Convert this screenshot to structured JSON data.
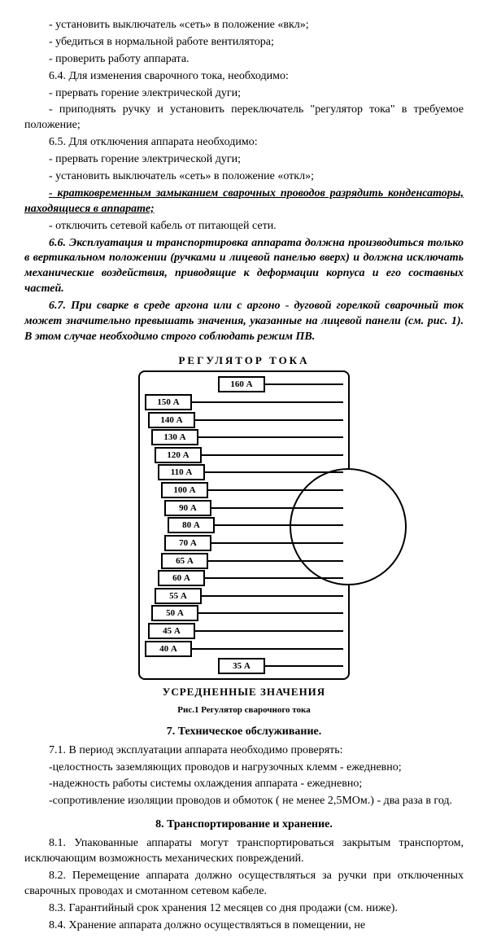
{
  "p1": "- установить выключатель «сеть» в положение «вкл»;",
  "p2": "- убедиться в нормальной работе вентилятора;",
  "p3": "- проверить работу аппарата.",
  "p4": "6.4. Для изменения сварочного тока, необходимо:",
  "p5": "- прервать горение электрической дуги;",
  "p6": "- приподнять ручку и установить переключатель \"регулятор тока\" в требуемое положение;",
  "p7": "6.5. Для отключения аппарата необходимо:",
  "p8": "- прервать горение электрической дуги;",
  "p9": "- установить выключатель «сеть» в положение «откл»;",
  "p10": "- кратковременным замыканием сварочных проводов разрядить конденсаторы, находящиеся в аппарате;",
  "p11": "- отключить сетевой кабель от питающей сети.",
  "p12": "6.6. Эксплуатация и транспортировка аппарата должна производиться только в вертикальном положении (ручками и лицевой панелью вверх) и должна исключать механические воздействия, приводящие к деформации корпуса и его составных частей.",
  "p13": "6.7. При сварке в среде аргона или с аргоно - дуговой горелкой сварочный ток может значительно превышать значения, указанные на лицевой панели (см. рис. 1). В этом случае необходимо строго соблюдать режим ПВ.",
  "diagram": {
    "title": "РЕГУЛЯТОР  ТОКА",
    "subtitle": "УСРЕДНЕННЫЕ ЗНАЧЕНИЯ",
    "caption": "Рис.1 Регулятор сварочного тока",
    "labels": [
      "160 А",
      "150 А",
      "140 А",
      "130 А",
      "120 А",
      "110 А",
      "100 А",
      "90 А",
      "80 А",
      "70 А",
      "65 А",
      "60 А",
      "55 А",
      "50 А",
      "45 А",
      "40 А",
      "35 А"
    ],
    "offsets": [
      90,
      0,
      4,
      8,
      12,
      16,
      20,
      24,
      28,
      24,
      20,
      16,
      12,
      8,
      4,
      0,
      90
    ],
    "border_color": "#000000",
    "background_color": "#ffffff"
  },
  "sec7_title": "7. Техническое обслуживание.",
  "s7_1": "7.1. В период эксплуатации аппарата необходимо проверять:",
  "s7_2": "-целостность заземляющих проводов и нагрузочных клемм - ежедневно;",
  "s7_3": "-надежность работы системы охлаждения аппарата - ежедневно;",
  "s7_4": "-сопротивление изоляции проводов и обмоток ( не менее 2,5МОм.) - два раза в год.",
  "sec8_title": "8. Транспортирование и хранение.",
  "s8_1": "8.1. Упакованные аппараты могут транспортироваться закрытым транспортом, исключающим возможность механических повреждений.",
  "s8_2": "8.2. Перемещение аппарата должно осуществляться за ручки при отключенных сварочных проводах и смотанном сетевом кабеле.",
  "s8_3": "8.3. Гарантийный срок хранения 12 месяцев со дня продажи (см. ниже).",
  "s8_4": "8.4. Хранение аппарата должно осуществляться в помещении, не"
}
